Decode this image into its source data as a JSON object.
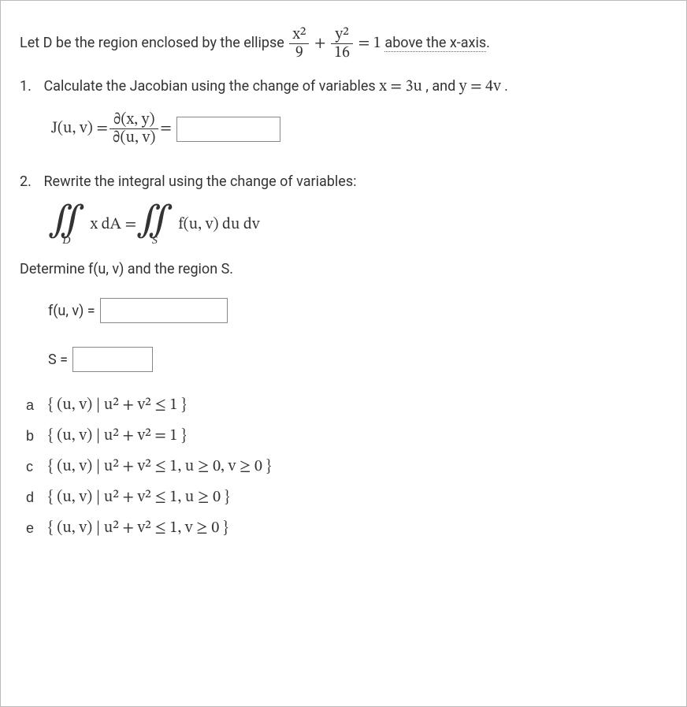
{
  "intro": {
    "prefix": "Let D be the region enclosed by the ellipse ",
    "frac1_num": "x²",
    "frac1_den": "9",
    "plus": " + ",
    "frac2_num": "y²",
    "frac2_den": "16",
    "eq_one": " = 1 ",
    "suffix": "above the x-axis",
    "period": "."
  },
  "q1": {
    "number": "1.",
    "text_before": "Calculate the Jacobian using the change of variables ",
    "eq1": "x = 3u",
    "and": ", and ",
    "eq2": "y = 4v",
    "period": ".",
    "jacobian_left": "J(u, v) = ",
    "jacobian_frac_num": "∂(x, y)",
    "jacobian_frac_den": "∂(u, v)",
    "jacobian_eq": " = "
  },
  "q2": {
    "number": "2.",
    "text": "Rewrite the integral using the change of variables:",
    "int_sub_D": "D",
    "int_body_left": "x dA = ",
    "int_sub_S": "S",
    "int_body_right": "f(u, v) du dv",
    "determine": "Determine f(u, v) and the region S.",
    "fuv_label": "f(u, v) = ",
    "s_label": "S = "
  },
  "choices": [
    {
      "letter": "a",
      "text": "{ (u, v) | u² + v² ≤ 1 }"
    },
    {
      "letter": "b",
      "text": "{ (u, v) | u² + v² = 1 }"
    },
    {
      "letter": "c",
      "text": "{ (u, v) | u² + v² ≤ 1,  u ≥ 0,  v ≥ 0 }"
    },
    {
      "letter": "d",
      "text": "{ (u, v) | u² + v² ≤ 1,  u ≥ 0 }"
    },
    {
      "letter": "e",
      "text": "{ (u, v) | u² + v² ≤ 1,  v ≥ 0 }"
    }
  ]
}
